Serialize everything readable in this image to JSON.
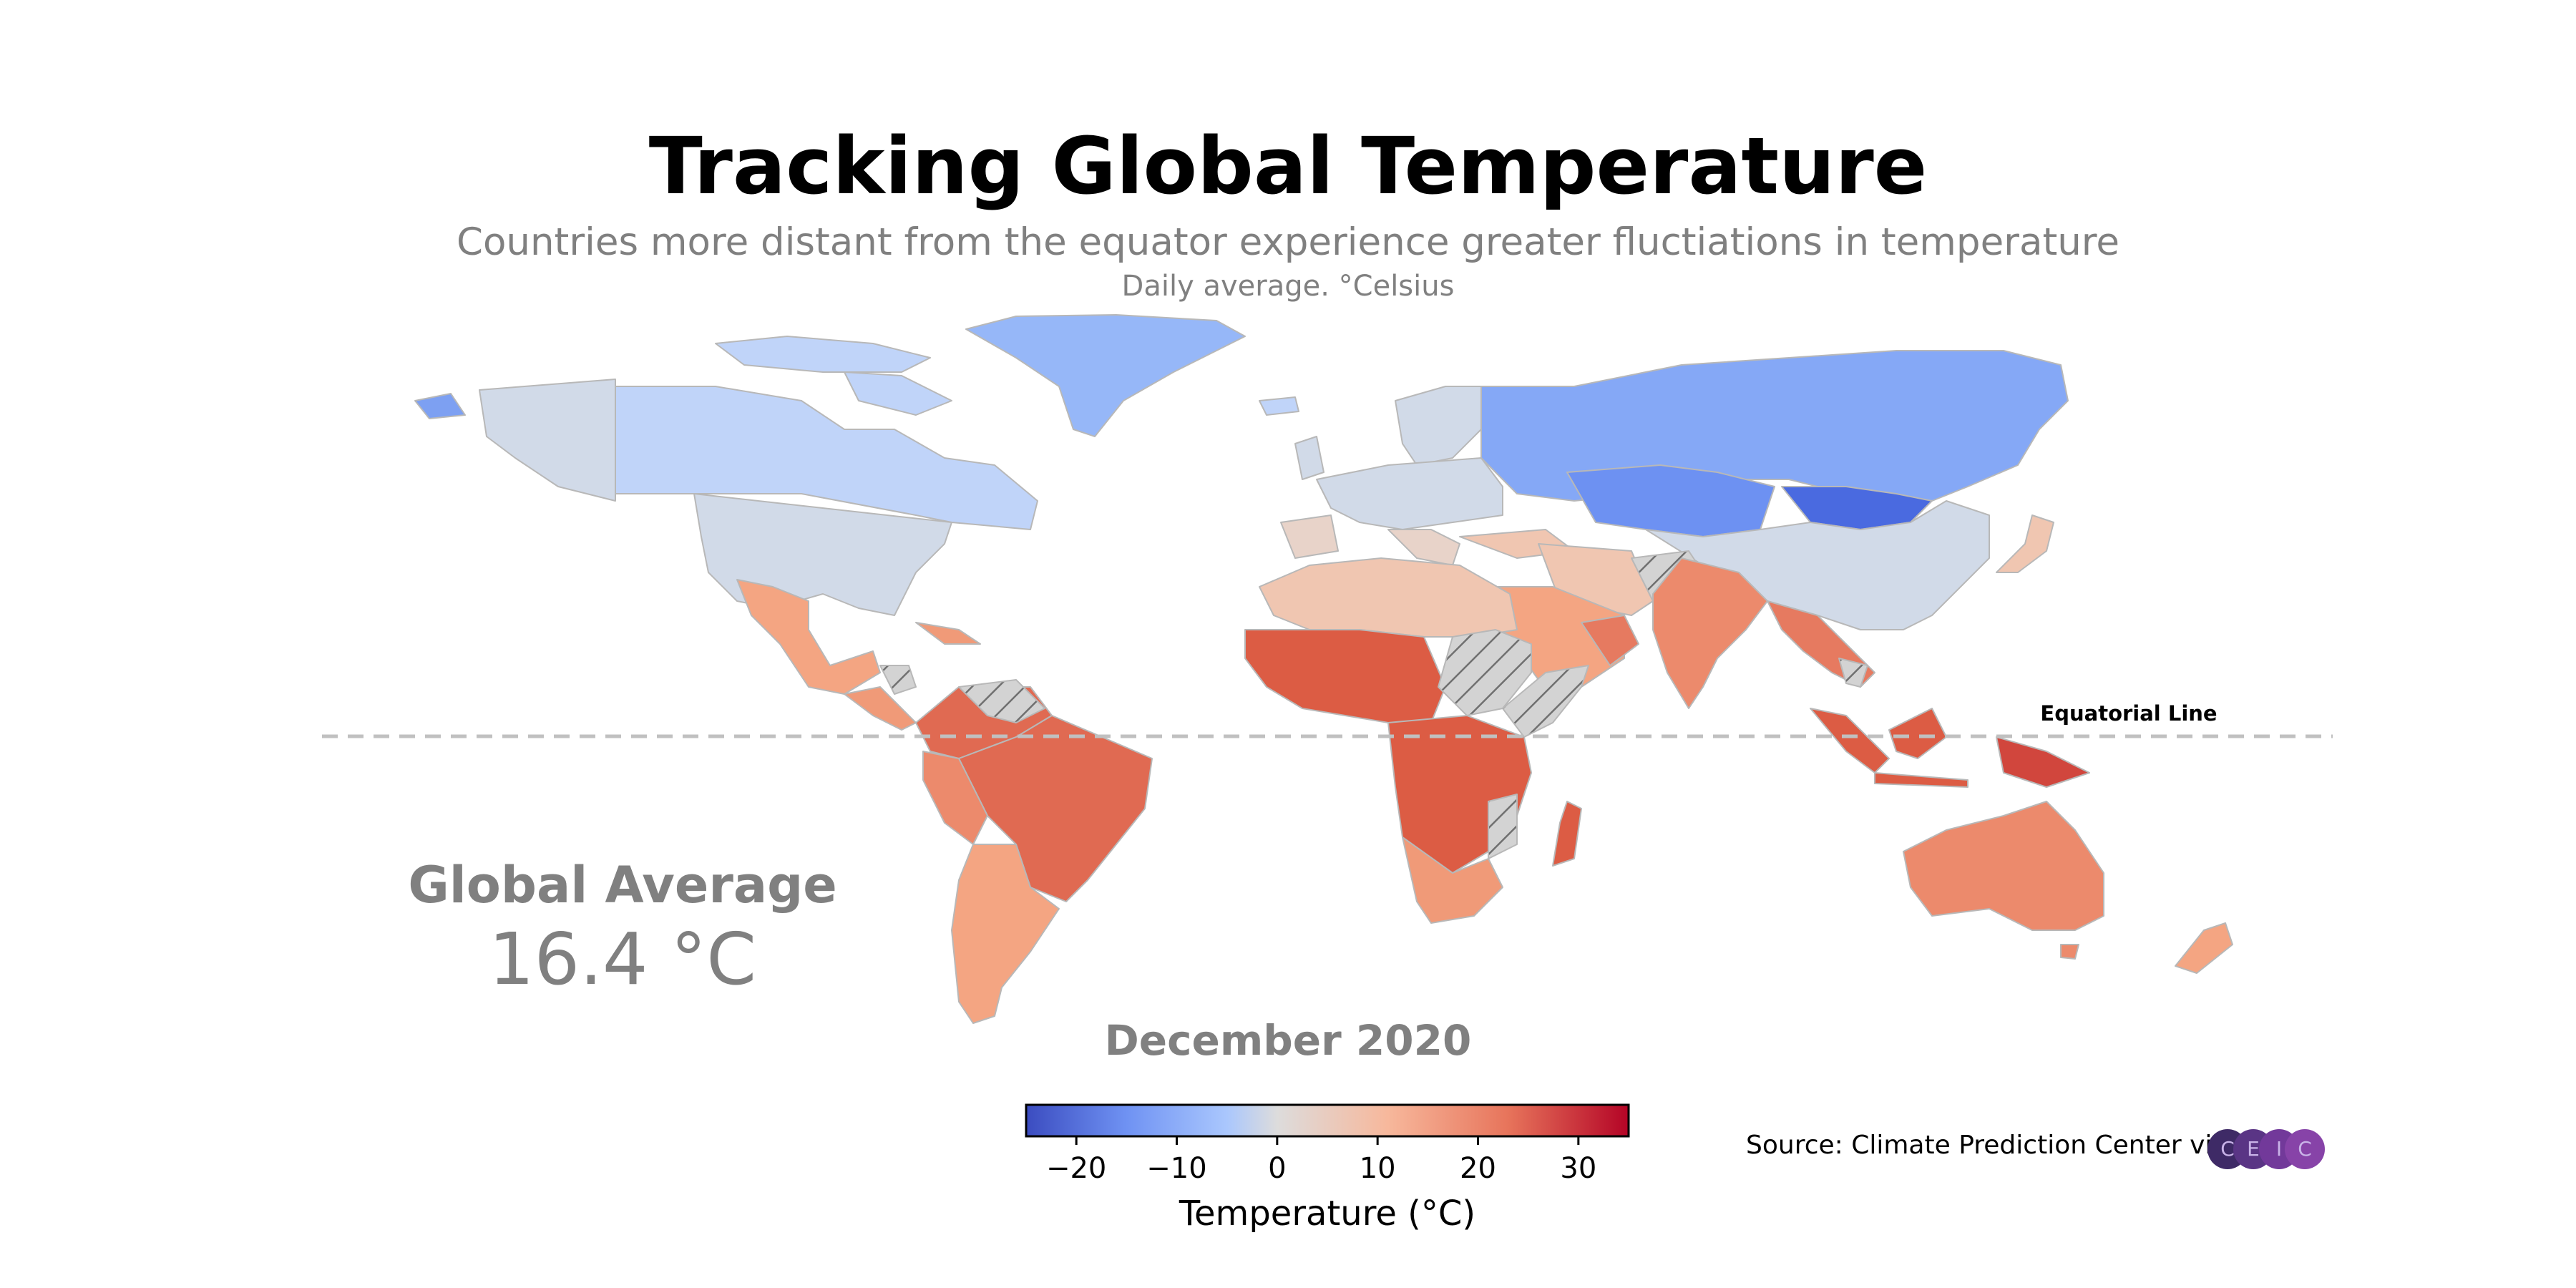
{
  "header": {
    "title": "Tracking Global Temperature",
    "subtitle": "Countries more distant from the equator experience greater fluctiations in temperature",
    "unit_note": "Daily average. °Celsius"
  },
  "map": {
    "equator_label": "Equatorial Line",
    "hatch_meaning": "no data"
  },
  "global_average": {
    "label": "Global Average",
    "value": "16.4 °C"
  },
  "period": "December 2020",
  "colorbar": {
    "label": "Temperature (°C)",
    "min": -25,
    "max": 35,
    "ticks": [
      "−20",
      "−10",
      "0",
      "10",
      "20",
      "30"
    ],
    "tick_values": [
      -20,
      -10,
      0,
      10,
      20,
      30
    ],
    "scale_colors": [
      "#3b4cc0",
      "#6f92f3",
      "#aac7fd",
      "#dddcdc",
      "#f7b89c",
      "#e7745b",
      "#b40426"
    ]
  },
  "source": {
    "text": "Source: Climate Prediction Center via",
    "logo_letters": [
      "C",
      "E",
      "I",
      "C"
    ],
    "logo_colors": [
      "#3e2a66",
      "#5a3585",
      "#72399a",
      "#8743a8"
    ]
  },
  "colors": {
    "nodata": "#d3d3d3",
    "equator": "#c0c0c0",
    "text_muted": "#808080"
  }
}
